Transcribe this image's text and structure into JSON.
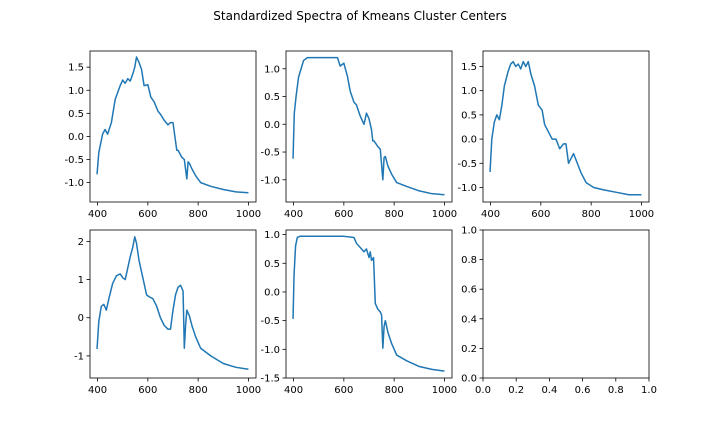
{
  "figure": {
    "title": "Standardized Spectra of Kmeans Cluster Centers",
    "line_color": "#1f77b4"
  },
  "chart_data": [
    {
      "type": "line",
      "panel": "top-left",
      "xlim": [
        370,
        1030
      ],
      "ylim": [
        -1.42,
        1.85
      ],
      "xticks": [
        400,
        600,
        800,
        1000
      ],
      "yticks": [
        -1.0,
        -0.5,
        0.0,
        0.5,
        1.0,
        1.5
      ],
      "ytick_labels": [
        "-1.0",
        "-0.5",
        "0.0",
        "0.5",
        "1.0",
        "1.5"
      ],
      "x": [
        398,
        405,
        420,
        430,
        440,
        455,
        470,
        490,
        500,
        510,
        520,
        530,
        540,
        548,
        555,
        565,
        575,
        585,
        600,
        612,
        625,
        640,
        650,
        665,
        680,
        690,
        700,
        710,
        715,
        720,
        735,
        745,
        755,
        760,
        765,
        775,
        790,
        810,
        850,
        900,
        950,
        1000
      ],
      "y": [
        -0.82,
        -0.35,
        0.05,
        0.15,
        0.05,
        0.3,
        0.8,
        1.1,
        1.22,
        1.15,
        1.25,
        1.2,
        1.35,
        1.5,
        1.72,
        1.6,
        1.45,
        1.1,
        1.12,
        0.85,
        0.75,
        0.55,
        0.48,
        0.35,
        0.25,
        0.3,
        0.3,
        -0.1,
        -0.3,
        -0.3,
        -0.45,
        -0.5,
        -0.92,
        -0.55,
        -0.58,
        -0.7,
        -0.85,
        -1.0,
        -1.08,
        -1.15,
        -1.2,
        -1.22
      ]
    },
    {
      "type": "line",
      "panel": "top-middle",
      "xlim": [
        370,
        1030
      ],
      "ylim": [
        -1.4,
        1.32
      ],
      "xticks": [
        400,
        600,
        800,
        1000
      ],
      "yticks": [
        -1.0,
        -0.5,
        0.0,
        0.5,
        1.0
      ],
      "ytick_labels": [
        "-1.0",
        "-0.5",
        "0.0",
        "0.5",
        "1.0"
      ],
      "x": [
        398,
        403,
        410,
        420,
        430,
        440,
        455,
        470,
        500,
        550,
        575,
        585,
        600,
        615,
        625,
        640,
        650,
        665,
        680,
        690,
        700,
        710,
        715,
        720,
        735,
        745,
        755,
        760,
        765,
        775,
        790,
        810,
        850,
        900,
        950,
        1000
      ],
      "y": [
        -0.62,
        0.2,
        0.5,
        0.85,
        1.0,
        1.15,
        1.2,
        1.2,
        1.2,
        1.2,
        1.2,
        1.05,
        1.1,
        0.85,
        0.6,
        0.4,
        0.35,
        0.15,
        0.0,
        0.2,
        0.1,
        -0.1,
        -0.3,
        -0.3,
        -0.4,
        -0.45,
        -1.0,
        -0.6,
        -0.58,
        -0.75,
        -0.9,
        -1.05,
        -1.12,
        -1.2,
        -1.25,
        -1.27
      ]
    },
    {
      "type": "line",
      "panel": "top-right",
      "xlim": [
        370,
        1030
      ],
      "ylim": [
        -1.3,
        1.82
      ],
      "xticks": [
        400,
        600,
        800,
        1000
      ],
      "yticks": [
        -1.0,
        -0.5,
        0.0,
        0.5,
        1.0,
        1.5
      ],
      "ytick_labels": [
        "-1.0",
        "-0.5",
        "0.0",
        "0.5",
        "1.0",
        "1.5"
      ],
      "x": [
        398,
        405,
        415,
        425,
        435,
        445,
        455,
        470,
        480,
        490,
        500,
        510,
        520,
        530,
        540,
        550,
        560,
        575,
        590,
        605,
        615,
        630,
        645,
        660,
        675,
        690,
        700,
        710,
        720,
        730,
        745,
        760,
        780,
        810,
        850,
        900,
        950,
        1000
      ],
      "y": [
        -0.68,
        0.0,
        0.35,
        0.5,
        0.4,
        0.7,
        1.1,
        1.4,
        1.55,
        1.6,
        1.5,
        1.55,
        1.45,
        1.6,
        1.5,
        1.6,
        1.35,
        1.1,
        0.7,
        0.6,
        0.3,
        0.15,
        0.0,
        0.0,
        -0.2,
        -0.1,
        -0.1,
        -0.5,
        -0.4,
        -0.3,
        -0.5,
        -0.7,
        -0.9,
        -1.0,
        -1.05,
        -1.1,
        -1.15,
        -1.15
      ]
    },
    {
      "type": "line",
      "panel": "bottom-left",
      "xlim": [
        370,
        1030
      ],
      "ylim": [
        -1.58,
        2.3
      ],
      "xticks": [
        400,
        600,
        800,
        1000
      ],
      "yticks": [
        -1,
        0,
        1,
        2
      ],
      "ytick_labels": [
        "-1",
        "0",
        "1",
        "2"
      ],
      "x": [
        398,
        405,
        415,
        425,
        435,
        445,
        460,
        475,
        490,
        500,
        510,
        520,
        530,
        540,
        548,
        555,
        565,
        575,
        585,
        595,
        605,
        620,
        635,
        650,
        665,
        680,
        690,
        700,
        710,
        720,
        730,
        740,
        745,
        750,
        755,
        765,
        775,
        790,
        810,
        850,
        900,
        950,
        1000
      ],
      "y": [
        -0.82,
        -0.1,
        0.3,
        0.35,
        0.2,
        0.5,
        0.9,
        1.1,
        1.15,
        1.05,
        1.0,
        1.3,
        1.6,
        1.85,
        2.12,
        1.95,
        1.5,
        1.2,
        0.9,
        0.6,
        0.55,
        0.5,
        0.3,
        0.0,
        -0.2,
        -0.3,
        -0.3,
        0.2,
        0.6,
        0.8,
        0.85,
        0.7,
        -0.8,
        -0.2,
        0.2,
        0.05,
        -0.2,
        -0.5,
        -0.8,
        -1.0,
        -1.2,
        -1.3,
        -1.35
      ]
    },
    {
      "type": "line",
      "panel": "bottom-middle",
      "xlim": [
        370,
        1030
      ],
      "ylim": [
        -1.5,
        1.08
      ],
      "xticks": [
        400,
        600,
        800,
        1000
      ],
      "yticks": [
        -1.5,
        -1.0,
        -0.5,
        0.0,
        0.5,
        1.0
      ],
      "ytick_labels": [
        "-1.5",
        "-1.0",
        "-0.5",
        "0.0",
        "0.5",
        "1.0"
      ],
      "x": [
        398,
        402,
        408,
        415,
        425,
        450,
        500,
        550,
        600,
        640,
        650,
        660,
        680,
        690,
        700,
        705,
        710,
        718,
        725,
        735,
        745,
        750,
        755,
        760,
        765,
        775,
        790,
        810,
        850,
        900,
        950,
        1000
      ],
      "y": [
        -0.47,
        0.3,
        0.8,
        0.95,
        0.97,
        0.97,
        0.97,
        0.97,
        0.97,
        0.95,
        0.85,
        0.8,
        0.7,
        0.75,
        0.6,
        0.7,
        0.55,
        0.6,
        -0.2,
        -0.3,
        -0.35,
        -0.4,
        -0.98,
        -0.6,
        -0.5,
        -0.7,
        -0.9,
        -1.1,
        -1.2,
        -1.3,
        -1.35,
        -1.38
      ]
    },
    {
      "type": "line",
      "panel": "bottom-right",
      "xlim": [
        0.0,
        1.0
      ],
      "ylim": [
        0.0,
        1.0
      ],
      "xticks": [
        0.0,
        0.2,
        0.4,
        0.6,
        0.8,
        1.0
      ],
      "xtick_labels": [
        "0.0",
        "0.2",
        "0.4",
        "0.6",
        "0.8",
        "1.0"
      ],
      "yticks": [
        0.0,
        0.2,
        0.4,
        0.6,
        0.8,
        1.0
      ],
      "ytick_labels": [
        "0.0",
        "0.2",
        "0.4",
        "0.6",
        "0.8",
        "1.0"
      ],
      "x": [],
      "y": []
    }
  ]
}
